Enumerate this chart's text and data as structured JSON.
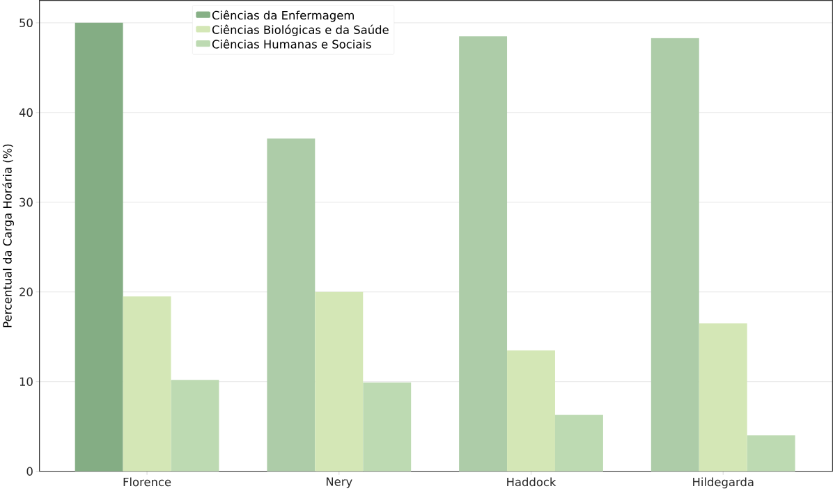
{
  "chart_data": {
    "type": "bar",
    "ylabel": "Percentual da Carga Horária (%)",
    "categories": [
      "Florence",
      "Nery",
      "Haddock",
      "Hildegarda"
    ],
    "series": [
      {
        "name": "Ciências da Enfermagem",
        "color": "#87b086",
        "colors": [
          "#84ad84",
          "#adcca8",
          "#adcca8",
          "#adcca8"
        ],
        "values": [
          50,
          37.1,
          48.5,
          48.3
        ]
      },
      {
        "name": "Ciências Biológicas e da Saúde",
        "color": "#d4e7b6",
        "values": [
          19.5,
          20.0,
          13.5,
          16.5
        ]
      },
      {
        "name": "Ciências Humanas e Sociais",
        "color": "#bddab2",
        "values": [
          10.2,
          9.9,
          6.3,
          4.0
        ]
      }
    ],
    "ylim": [
      0,
      52.5
    ],
    "yticks": [
      0,
      10,
      20,
      30,
      40,
      50
    ],
    "grid": "y",
    "legend": "top"
  }
}
